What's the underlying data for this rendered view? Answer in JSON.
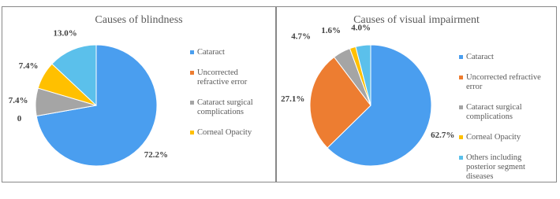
{
  "chart_data": [
    {
      "type": "pie",
      "title": "Causes of blindness",
      "categories": [
        "Cataract",
        "Uncorrected refractive error",
        "Cataract surgical complications",
        "Corneal Opacity",
        null
      ],
      "values": [
        72.2,
        0,
        7.4,
        7.4,
        13.0
      ],
      "value_labels": [
        "72.2%",
        "0",
        "7.4%",
        "7.4%",
        "13.0%"
      ],
      "colors": [
        "#4a9eef",
        "#ed7d31",
        "#a5a5a5",
        "#ffc000",
        "#5bc0eb"
      ]
    },
    {
      "type": "pie",
      "title": "Causes of visual impairment",
      "categories": [
        "Cataract",
        "Uncorrected refractive error",
        "Cataract surgical complications",
        "Corneal Opacity",
        "Others including posterior segment diseases"
      ],
      "values": [
        62.7,
        27.1,
        4.7,
        1.6,
        4.0
      ],
      "value_labels": [
        "62.7%",
        "27.1%",
        "4.7%",
        "1.6%",
        "4.0%"
      ],
      "colors": [
        "#4a9eef",
        "#ed7d31",
        "#a5a5a5",
        "#ffc000",
        "#5bc0eb"
      ]
    }
  ]
}
